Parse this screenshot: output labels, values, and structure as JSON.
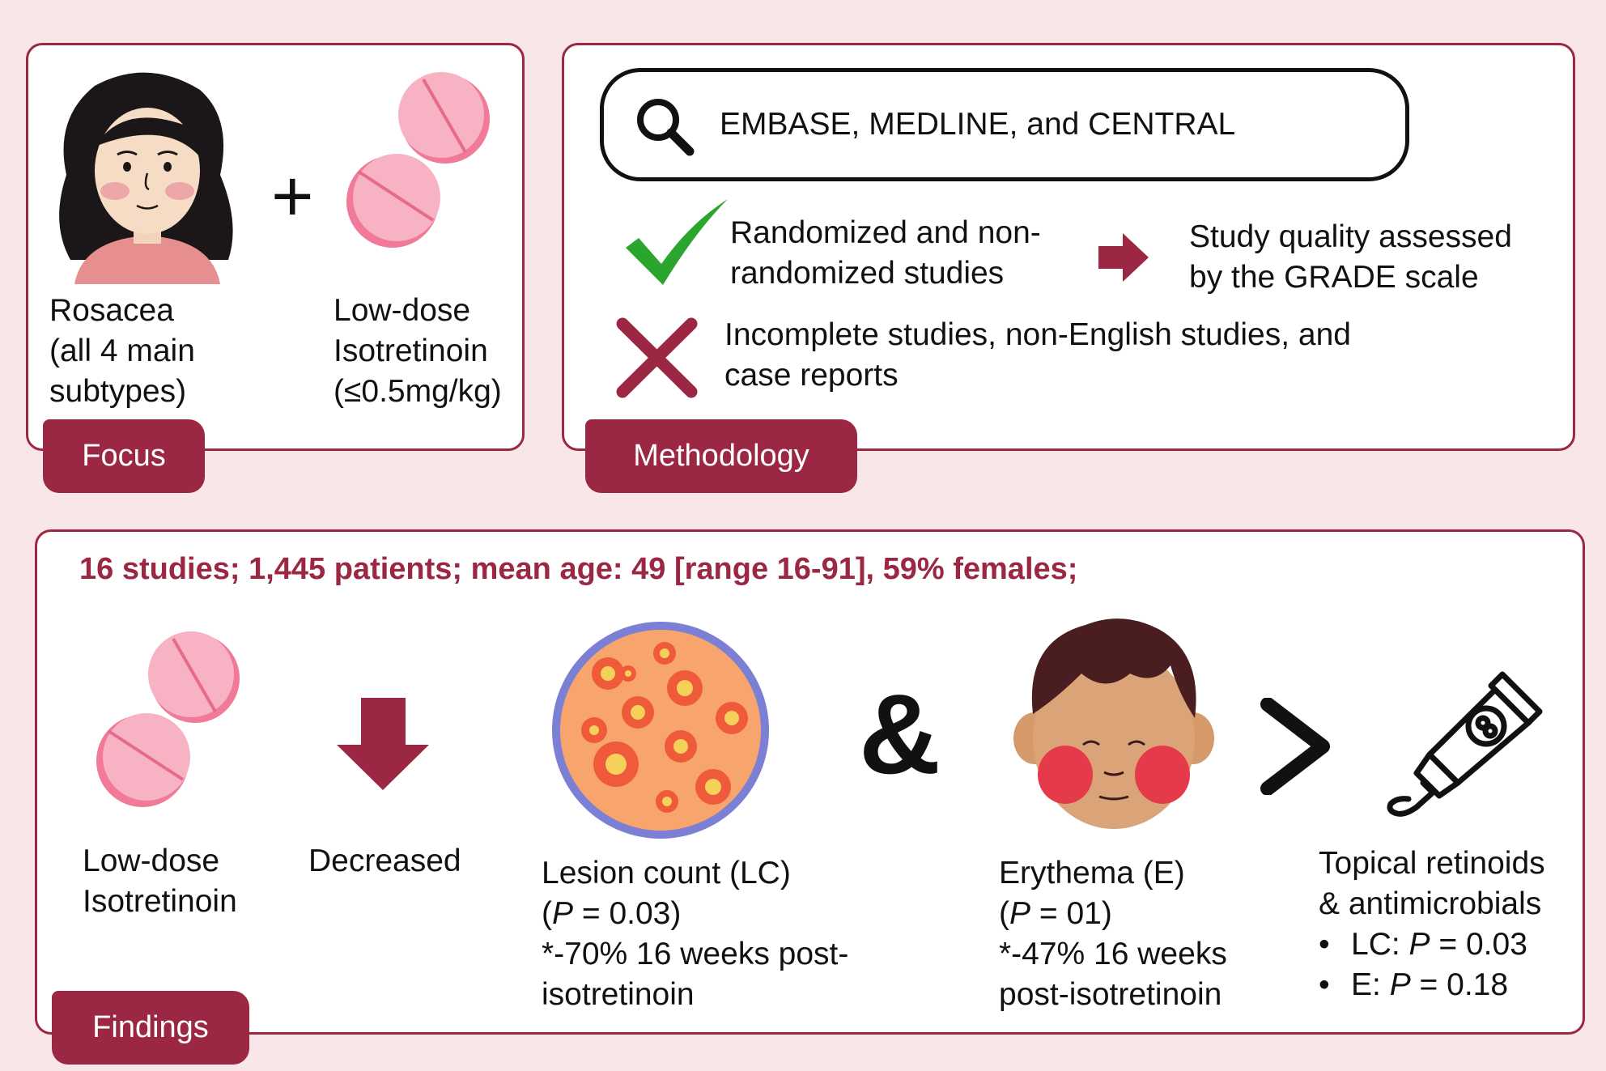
{
  "focus": {
    "tab_label": "Focus",
    "condition_lines": [
      "Rosacea",
      "(all 4 main",
      "subtypes)"
    ],
    "plus_symbol": "+",
    "drug_lines": [
      "Low-dose",
      "Isotretinoin",
      "(≤0.5mg/kg)"
    ]
  },
  "methodology": {
    "tab_label": "Methodology",
    "databases": "EMBASE, MEDLINE, and CENTRAL",
    "included_lines": [
      "Randomized and non-",
      "randomized studies"
    ],
    "quality_lines": [
      "Study quality assessed",
      "by the GRADE scale"
    ],
    "excluded_lines": [
      "Incomplete studies, non-English studies, and",
      "case reports"
    ]
  },
  "findings": {
    "tab_label": "Findings",
    "summary": "16 studies; 1,445 patients; mean age: 49 [range 16-91], 59% females;",
    "drug_lines": [
      "Low-dose",
      "Isotretinoin"
    ],
    "effect": "Decreased",
    "ampersand": "&",
    "lesion": {
      "title": "Lesion count (LC)",
      "p_prefix": "(",
      "p_var": "P",
      "p_rest": " = 0.03)",
      "detail_lines": [
        "*-70% 16 weeks post-",
        "isotretinoin"
      ]
    },
    "erythema": {
      "title": "Erythema (E)",
      "p_prefix": "(",
      "p_var": "P",
      "p_rest": " = 01)",
      "detail_lines": [
        "*-47% 16 weeks",
        "post-isotretinoin"
      ]
    },
    "comparator_lines": [
      "Topical retinoids",
      "& antimicrobials"
    ],
    "comparator_bullets": [
      {
        "label": "LC: ",
        "var": "P",
        "rest": " = 0.03"
      },
      {
        "label": "E: ",
        "var": "P",
        "rest": " = 0.18"
      }
    ]
  },
  "colors": {
    "accent": "#9b2743",
    "check": "#2aa52e",
    "background": "#f8e6e8",
    "pill": "#f07a98"
  },
  "icons": [
    "woman-face-icon",
    "pill-icon",
    "search-icon",
    "check-icon",
    "right-arrow-icon",
    "cross-icon",
    "down-arrow-icon",
    "skin-lesions-icon",
    "man-face-icon",
    "greater-than-icon",
    "ointment-tube-icon"
  ]
}
